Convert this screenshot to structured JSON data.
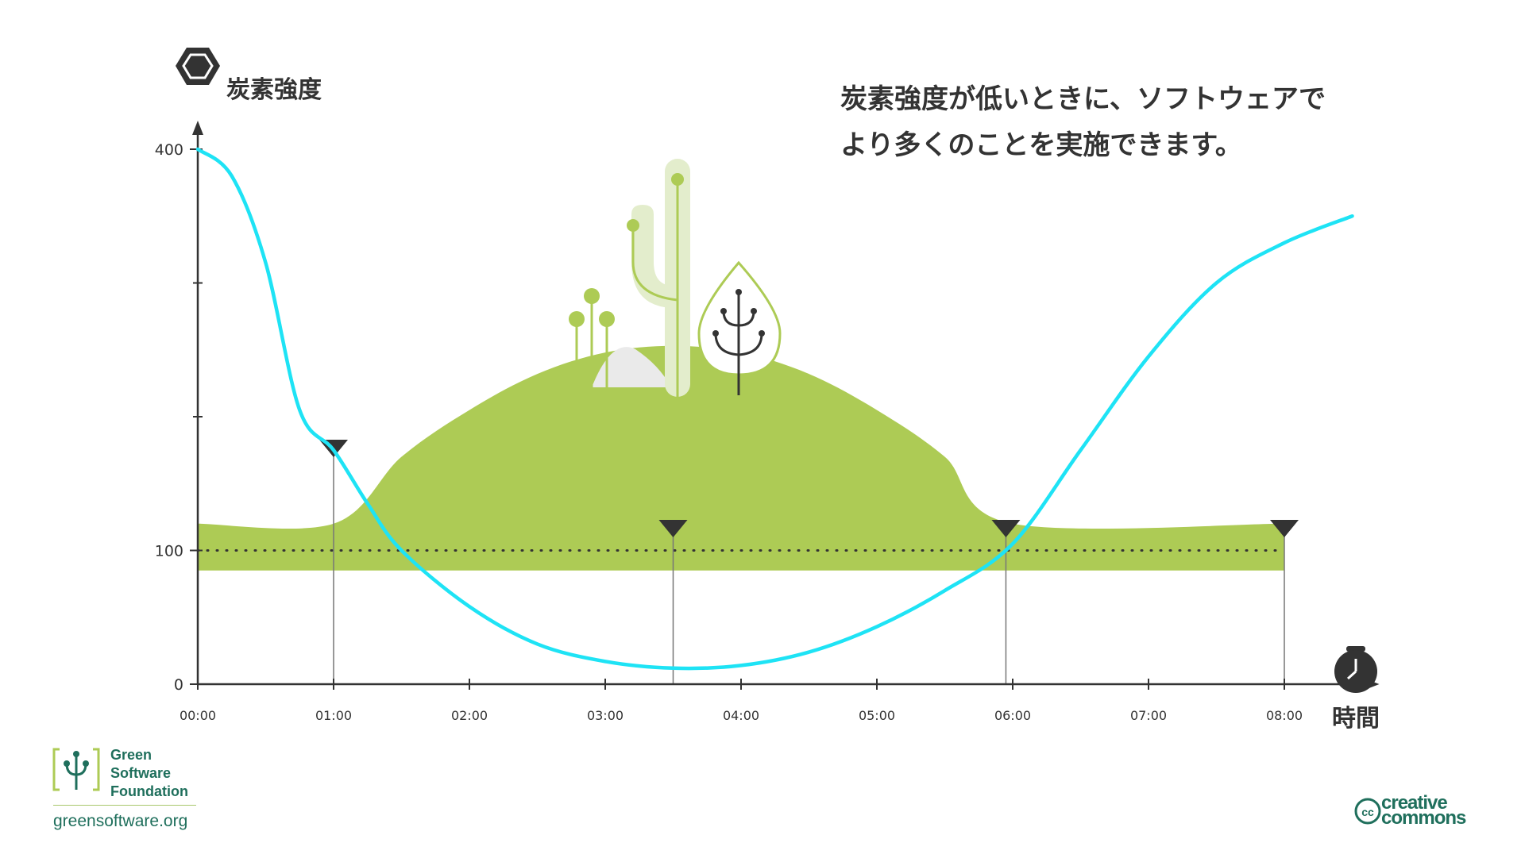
{
  "chart_data": {
    "type": "line",
    "ylabel": "炭素強度",
    "xlabel": "時間",
    "y_ticks": [
      {
        "value": 0,
        "label": "0"
      },
      {
        "value": 100,
        "label": "100"
      },
      {
        "value": 400,
        "label": "400"
      }
    ],
    "y_minor_ticks": [
      200,
      300
    ],
    "ylim": [
      0,
      400
    ],
    "x_ticks": [
      "00:00",
      "01:00",
      "02:00",
      "03:00",
      "04:00",
      "05:00",
      "06:00",
      "07:00",
      "08:00"
    ],
    "xlim": [
      0,
      8.5
    ],
    "series": [
      {
        "color": "#1ee3f5",
        "x": [
          0,
          0.25,
          0.5,
          0.75,
          1,
          1.25,
          1.5,
          2,
          2.5,
          3,
          3.5,
          4,
          4.5,
          5,
          5.5,
          6,
          6.5,
          7,
          7.5,
          8,
          8.5
        ],
        "y": [
          400,
          380,
          315,
          205,
          175,
          135,
          100,
          58,
          30,
          17,
          12,
          14,
          24,
          43,
          70,
          105,
          175,
          245,
          300,
          330,
          350
        ]
      }
    ],
    "threshold": {
      "value": 100,
      "style": "dotted"
    },
    "markers_x": [
      1.0,
      3.5,
      5.95,
      8.0
    ],
    "hill": {
      "color": "#adcb55",
      "band_range": [
        85,
        120
      ],
      "x": [
        0,
        1.0,
        1.5,
        2,
        2.5,
        3,
        3.5,
        4,
        4.5,
        5,
        5.5,
        6,
        8.0
      ],
      "y": [
        120,
        120,
        170,
        205,
        232,
        248,
        253,
        248,
        232,
        205,
        170,
        120,
        120
      ]
    }
  },
  "headline": {
    "line1": "炭素強度が低いときに、ソフトウェアで",
    "line2": "より多くのことを実施できます。"
  },
  "footer": {
    "gsf_line1": "Green",
    "gsf_line2": "Software",
    "gsf_line3": "Foundation",
    "gsf_url": "greensoftware.org",
    "cc_line1": "creative",
    "cc_line2": "commons",
    "cc_badge": "cc"
  },
  "colors": {
    "curve": "#1ee3f5",
    "hill": "#adcb55",
    "hill_light": "#e3edcc",
    "axis": "#333333",
    "brand": "#1f6f5c"
  },
  "icons": [
    "hexagon-icon",
    "stopwatch-icon",
    "cactus-illustration",
    "tree-illustration",
    "plant-illustration",
    "gsf-logo-icon",
    "cc-logo-icon"
  ]
}
